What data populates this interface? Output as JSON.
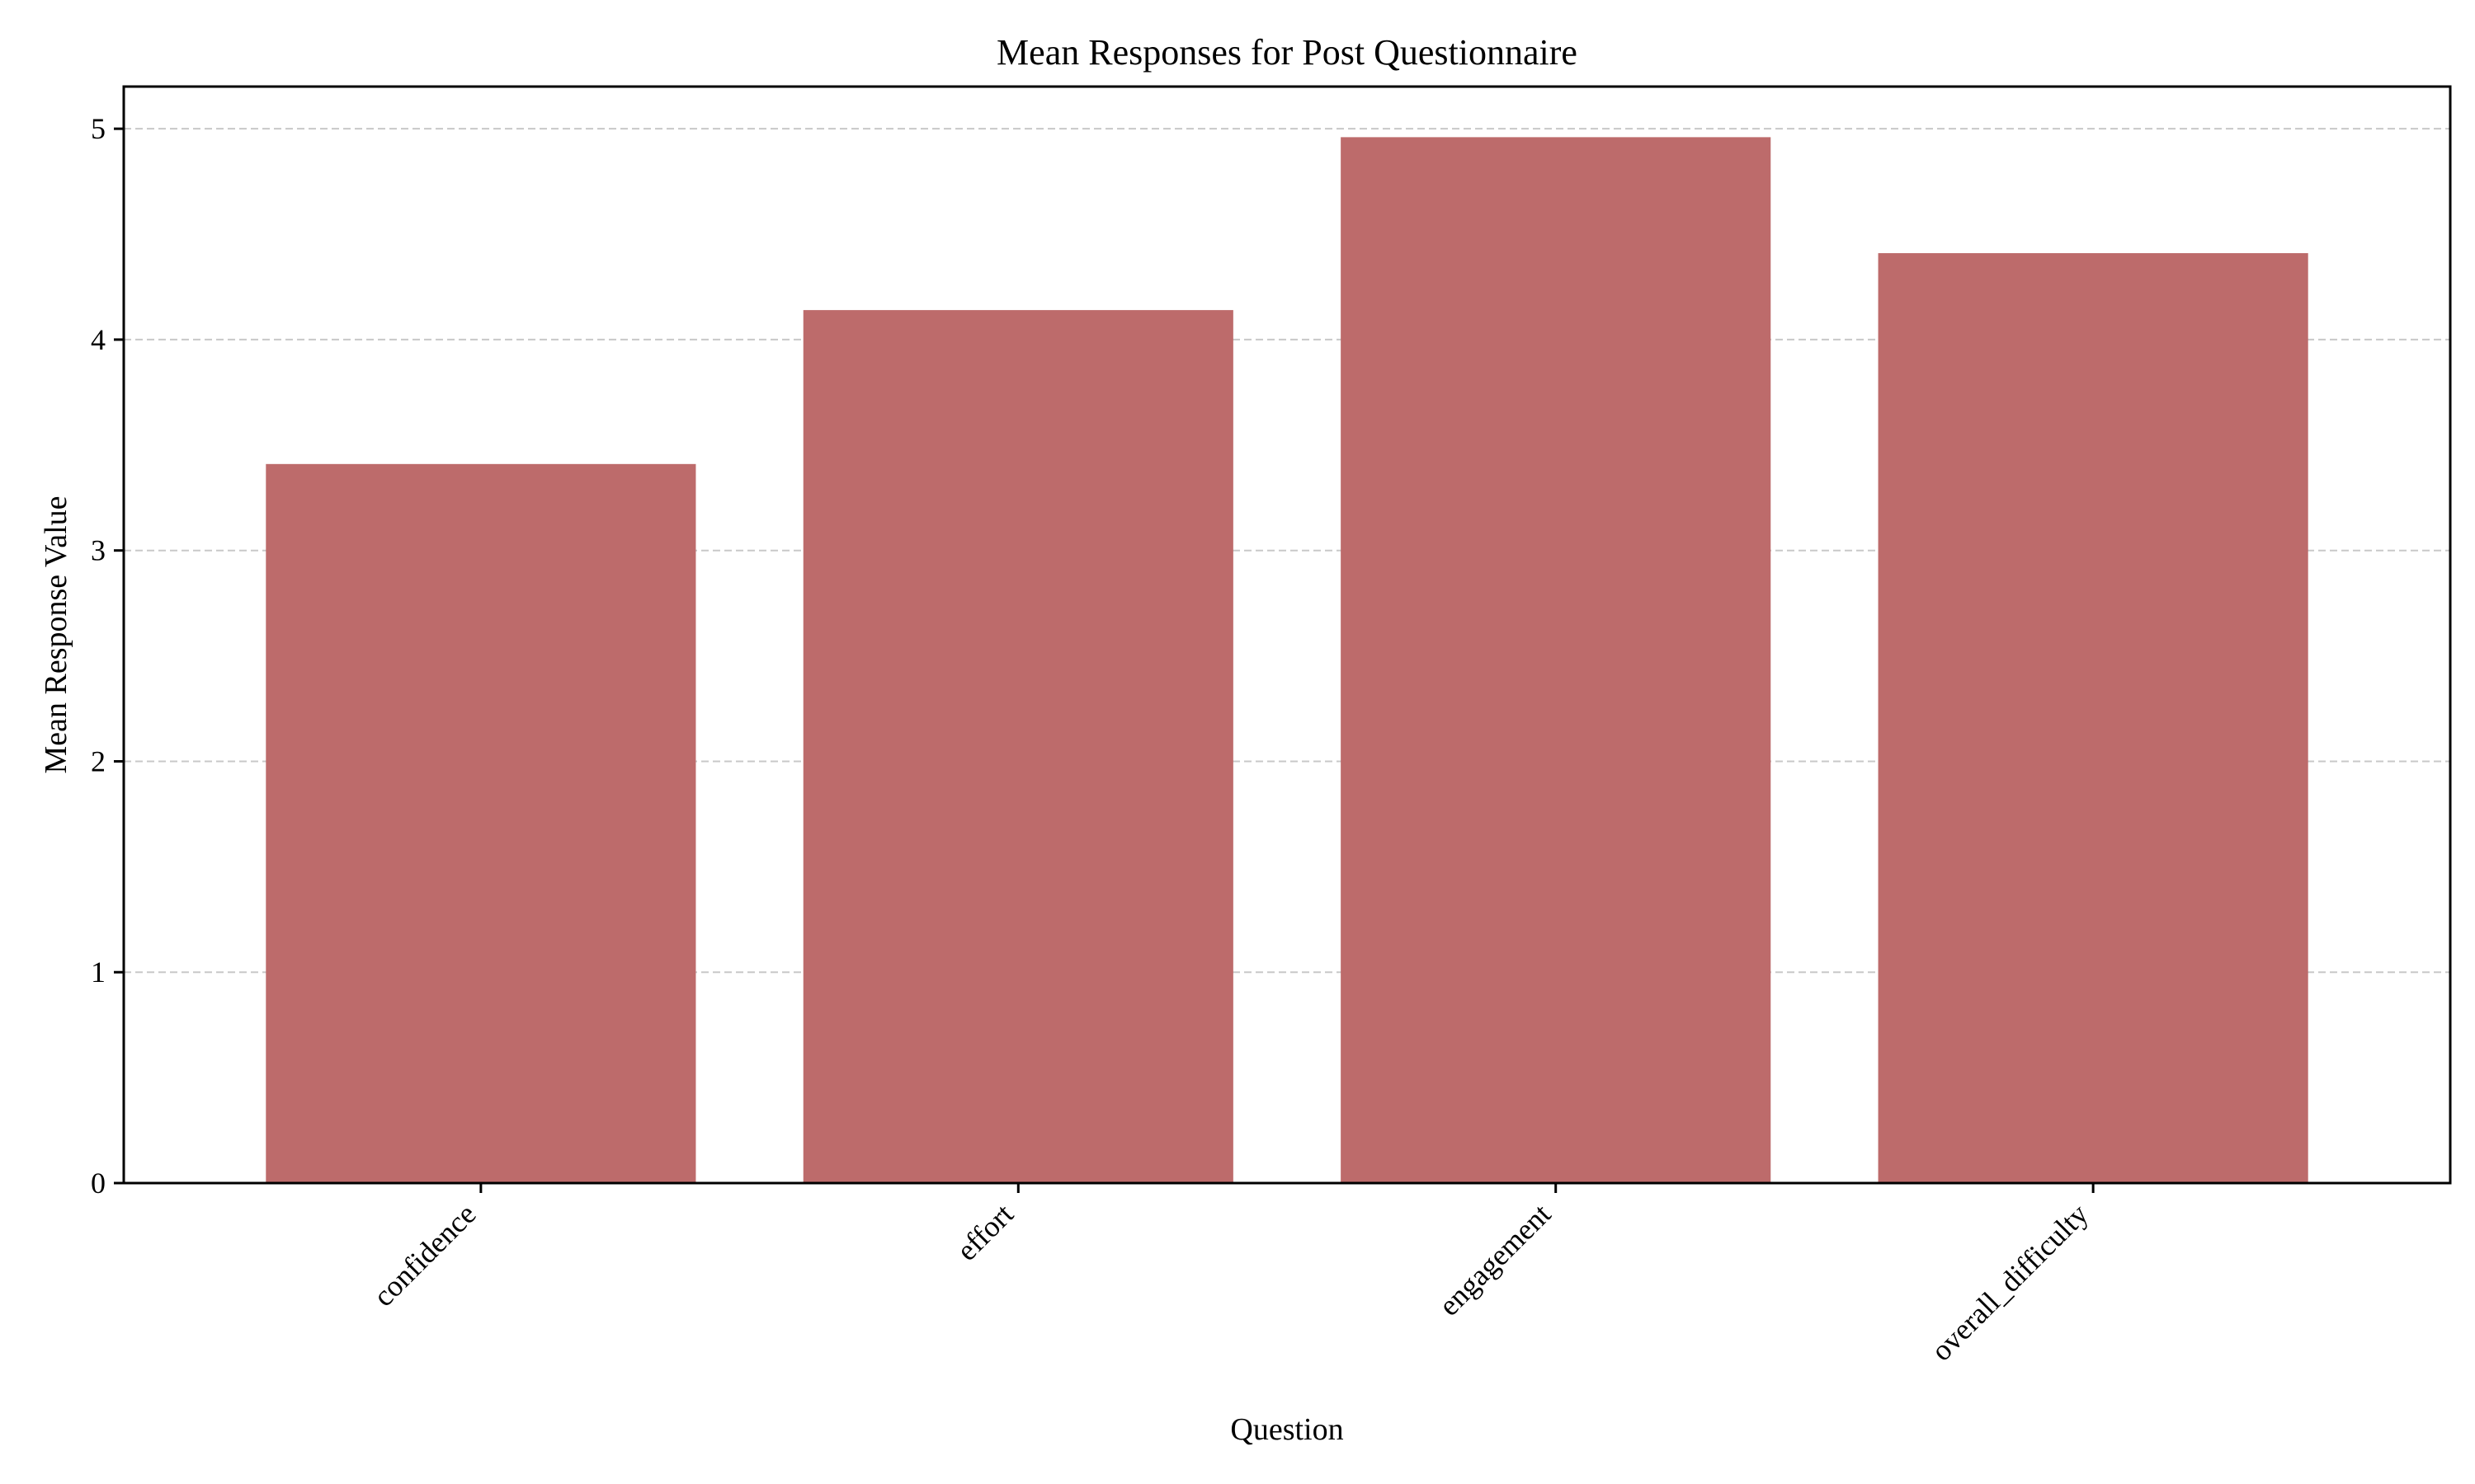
{
  "chart_data": {
    "type": "bar",
    "title": "Mean Responses for Post Questionnaire",
    "xlabel": "Question",
    "ylabel": "Mean Response Value",
    "categories": [
      "confidence",
      "effort",
      "engagement",
      "overall_difficulty"
    ],
    "values": [
      3.41,
      4.14,
      4.96,
      4.41
    ],
    "ylim": [
      0,
      5.2
    ],
    "yticks": [
      0,
      1,
      2,
      3,
      4,
      5
    ],
    "grid": "y-dashed",
    "legend": "none",
    "bar_color": "#bd6b6b",
    "grid_color": "#c8c8c8"
  }
}
